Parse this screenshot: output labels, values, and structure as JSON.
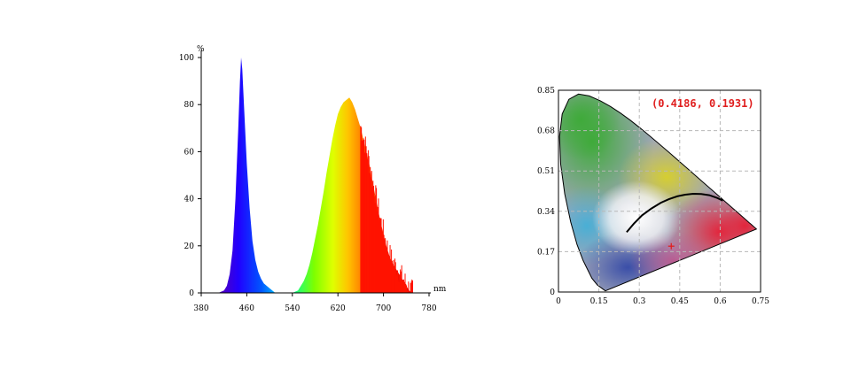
{
  "chart_data": [
    {
      "type": "area",
      "title": "",
      "xlabel": "nm",
      "ylabel": "%",
      "xlim": [
        380,
        780
      ],
      "ylim": [
        0,
        100
      ],
      "x_ticks": [
        "380",
        "460",
        "540",
        "620",
        "700",
        "780"
      ],
      "y_ticks": [
        "0",
        "20",
        "40",
        "60",
        "80",
        "100"
      ],
      "grid": false,
      "series": [
        {
          "x": [
            410,
            420,
            425,
            430,
            435,
            440,
            445,
            448,
            450,
            452,
            455,
            460,
            465,
            470,
            475,
            480,
            485,
            490,
            500,
            510,
            540,
            550,
            555,
            560,
            565,
            570,
            575,
            580,
            585,
            590,
            595,
            600,
            605,
            610,
            615,
            620,
            625,
            630,
            635,
            640,
            645,
            650,
            655,
            660,
            665,
            670,
            675,
            680,
            685,
            690,
            695,
            700,
            705,
            710,
            715,
            720,
            725,
            730,
            735,
            740,
            745,
            750
          ],
          "values": [
            0,
            1,
            3,
            8,
            18,
            40,
            70,
            90,
            100,
            95,
            80,
            55,
            36,
            22,
            14,
            9,
            6,
            4,
            2,
            0,
            0,
            1,
            3,
            5,
            8,
            12,
            17,
            23,
            29,
            36,
            43,
            51,
            58,
            65,
            71,
            76,
            79,
            81,
            82,
            83,
            81,
            78,
            74,
            70,
            65,
            60,
            55,
            48,
            42,
            36,
            30,
            25,
            20,
            16,
            13,
            11,
            9,
            7,
            5,
            3,
            1,
            0
          ]
        }
      ]
    },
    {
      "type": "scatter",
      "title": "",
      "xlabel": "",
      "ylabel": "",
      "xlim": [
        0,
        0.75
      ],
      "ylim": [
        0,
        0.85
      ],
      "x_ticks": [
        "0",
        "0.15",
        "0.3",
        "0.45",
        "0.6",
        "0.75"
      ],
      "y_ticks": [
        "0",
        "0.17",
        "0.34",
        "0.51",
        "0.68",
        "0.85"
      ],
      "grid": true,
      "coordinate_label": "(0.4186,  0.1931)",
      "point": {
        "x": 0.4186,
        "y": 0.1931
      },
      "point_color": "#e02020",
      "planckian_locus": [
        [
          0.253,
          0.252
        ],
        [
          0.28,
          0.288
        ],
        [
          0.31,
          0.323
        ],
        [
          0.345,
          0.352
        ],
        [
          0.38,
          0.376
        ],
        [
          0.41,
          0.391
        ],
        [
          0.44,
          0.403
        ],
        [
          0.47,
          0.41
        ],
        [
          0.5,
          0.414
        ],
        [
          0.53,
          0.413
        ],
        [
          0.56,
          0.408
        ],
        [
          0.59,
          0.396
        ],
        [
          0.61,
          0.385
        ]
      ],
      "spectral_locus": [
        [
          0.1741,
          0.005
        ],
        [
          0.144,
          0.0297
        ],
        [
          0.1241,
          0.0578
        ],
        [
          0.0913,
          0.1327
        ],
        [
          0.0687,
          0.2007
        ],
        [
          0.0454,
          0.295
        ],
        [
          0.0235,
          0.4127
        ],
        [
          0.0082,
          0.5384
        ],
        [
          0.0039,
          0.6548
        ],
        [
          0.0139,
          0.7502
        ],
        [
          0.0389,
          0.812
        ],
        [
          0.0743,
          0.8338
        ],
        [
          0.1142,
          0.8262
        ],
        [
          0.1547,
          0.8059
        ],
        [
          0.1929,
          0.7816
        ],
        [
          0.2296,
          0.7543
        ],
        [
          0.2658,
          0.7243
        ],
        [
          0.3016,
          0.6923
        ],
        [
          0.3373,
          0.6589
        ],
        [
          0.3731,
          0.6245
        ],
        [
          0.4087,
          0.5896
        ],
        [
          0.4441,
          0.5547
        ],
        [
          0.4788,
          0.5202
        ],
        [
          0.5125,
          0.4866
        ],
        [
          0.5448,
          0.4544
        ],
        [
          0.5752,
          0.4242
        ],
        [
          0.6029,
          0.3965
        ],
        [
          0.627,
          0.3725
        ],
        [
          0.6482,
          0.3514
        ],
        [
          0.6658,
          0.334
        ],
        [
          0.6801,
          0.3197
        ],
        [
          0.6915,
          0.3083
        ],
        [
          0.7006,
          0.2993
        ],
        [
          0.7079,
          0.292
        ],
        [
          0.714,
          0.2859
        ],
        [
          0.7347,
          0.2653
        ]
      ]
    }
  ],
  "colors": {
    "axis": "#000000",
    "grid": "#b8b8b8",
    "marker": "#e02020"
  }
}
